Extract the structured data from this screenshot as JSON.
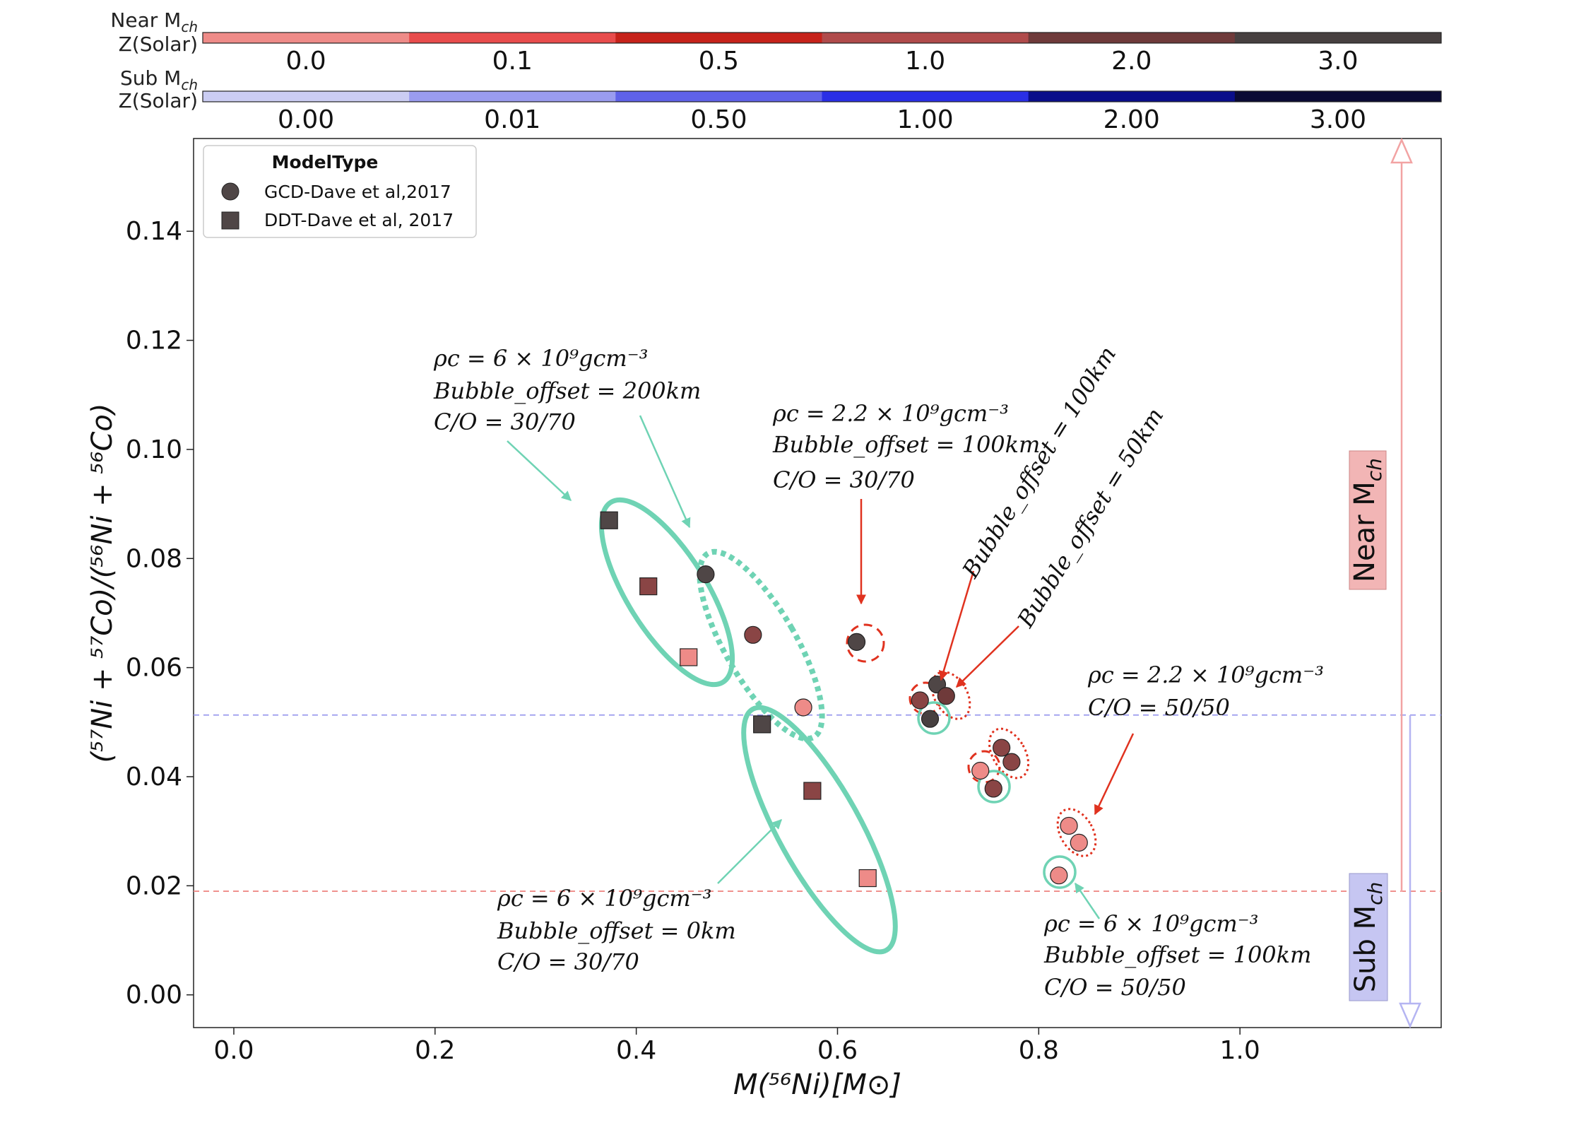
{
  "chart_data": {
    "type": "scatter",
    "xlabel": "M(⁵⁶Ni)[M⊙]",
    "ylabel": "(⁵⁷Ni + ⁵⁷Co)/(⁵⁶Ni + ⁵⁶Co)",
    "xlim": [
      -0.04,
      1.2
    ],
    "ylim": [
      -0.006,
      0.157
    ],
    "xticks": [
      "0.0",
      "0.2",
      "0.4",
      "0.6",
      "0.8",
      "1.0"
    ],
    "xtick_values": [
      0.0,
      0.2,
      0.4,
      0.6,
      0.8,
      1.0
    ],
    "yticks": [
      "0.00",
      "0.02",
      "0.04",
      "0.06",
      "0.08",
      "0.10",
      "0.12",
      "0.14"
    ],
    "ytick_values": [
      0.0,
      0.02,
      0.04,
      0.06,
      0.08,
      0.1,
      0.12,
      0.14
    ],
    "legend": {
      "title": "ModelType",
      "placement": "top-left",
      "entries": [
        {
          "label": "GCD-Dave et al,2017",
          "marker": "circle"
        },
        {
          "label": "DDT-Dave et al, 2017",
          "marker": "square"
        }
      ]
    },
    "colorbars": [
      {
        "title_line1": "Near M",
        "title_sub": "ch",
        "title_line2": "Z(Solar)",
        "labels": [
          "0.0",
          "0.1",
          "0.5",
          "1.0",
          "2.0",
          "3.0"
        ],
        "colors": [
          "#ee8b88",
          "#e84c4c",
          "#c6221a",
          "#b04b4b",
          "#6f3a3a",
          "#474040"
        ]
      },
      {
        "title_line1": "Sub M",
        "title_sub": "ch",
        "title_line2": "Z(Solar)",
        "labels": [
          "0.00",
          "0.01",
          "0.50",
          "1.00",
          "2.00",
          "3.00"
        ],
        "colors": [
          "#cbcdf3",
          "#9a9cef",
          "#5f62e8",
          "#2a2fe6",
          "#0a0e8a",
          "#0b0b35"
        ]
      }
    ],
    "series": [
      {
        "name": "GCD-Dave et al,2017",
        "marker": "circle",
        "points": [
          {
            "x": 0.469,
            "y": 0.0771,
            "color": "#4f4646"
          },
          {
            "x": 0.516,
            "y": 0.066,
            "color": "#8a4545"
          },
          {
            "x": 0.566,
            "y": 0.0527,
            "color": "#ee8b88"
          },
          {
            "x": 0.619,
            "y": 0.0647,
            "color": "#4f4646"
          },
          {
            "x": 0.682,
            "y": 0.054,
            "color": "#8a4545"
          },
          {
            "x": 0.699,
            "y": 0.0569,
            "color": "#4f4646"
          },
          {
            "x": 0.708,
            "y": 0.0548,
            "color": "#6f3a3a"
          },
          {
            "x": 0.692,
            "y": 0.0506,
            "color": "#474040"
          },
          {
            "x": 0.742,
            "y": 0.0411,
            "color": "#ee8b88"
          },
          {
            "x": 0.763,
            "y": 0.0453,
            "color": "#8a4545"
          },
          {
            "x": 0.773,
            "y": 0.0427,
            "color": "#8a4545"
          },
          {
            "x": 0.755,
            "y": 0.0378,
            "color": "#8a4545"
          },
          {
            "x": 0.83,
            "y": 0.031,
            "color": "#ee8b88"
          },
          {
            "x": 0.84,
            "y": 0.0279,
            "color": "#ee8b88"
          },
          {
            "x": 0.82,
            "y": 0.0219,
            "color": "#ee8b88"
          }
        ]
      },
      {
        "name": "DDT-Dave et al, 2017",
        "marker": "square",
        "points": [
          {
            "x": 0.373,
            "y": 0.087,
            "color": "#4f4646"
          },
          {
            "x": 0.412,
            "y": 0.0749,
            "color": "#8a4545"
          },
          {
            "x": 0.452,
            "y": 0.0619,
            "color": "#ee8b88"
          },
          {
            "x": 0.525,
            "y": 0.0496,
            "color": "#4f4646"
          },
          {
            "x": 0.575,
            "y": 0.0374,
            "color": "#8a4545"
          },
          {
            "x": 0.63,
            "y": 0.0214,
            "color": "#ee8b88"
          }
        ]
      }
    ],
    "reference_lines": [
      {
        "y": 0.0513,
        "color": "#9b9bee",
        "style": "dashed"
      },
      {
        "y": 0.019,
        "color": "#ee8b88",
        "style": "dashed"
      }
    ],
    "side_labels": [
      {
        "text": "Near M",
        "sub": "ch",
        "color": "#ee8b88"
      },
      {
        "text": "Sub M",
        "sub": "ch",
        "color": "#9b9bee"
      }
    ],
    "annotations": [
      {
        "lines": [
          "ρc = 6 × 10⁹gcm⁻³",
          "Bubble_offset = 200km",
          "C/O = 30/70"
        ]
      },
      {
        "lines": [
          "ρc = 2.2 × 10⁹gcm⁻³",
          "Bubble_offset = 100km",
          "C/O = 30/70"
        ]
      },
      {
        "lines": [
          "Bubble_offset = 100km"
        ]
      },
      {
        "lines": [
          "Bubble_offset = 50km"
        ]
      },
      {
        "lines": [
          "ρc = 2.2 × 10⁹gcm⁻³",
          "C/O = 50/50"
        ]
      },
      {
        "lines": [
          "ρc = 6 × 10⁹gcm⁻³",
          "Bubble_offset = 0km",
          "C/O = 30/70"
        ]
      },
      {
        "lines": [
          "ρc = 6 × 10⁹gcm⁻³",
          "Bubble_offset = 100km",
          "C/O = 50/50"
        ]
      }
    ]
  }
}
